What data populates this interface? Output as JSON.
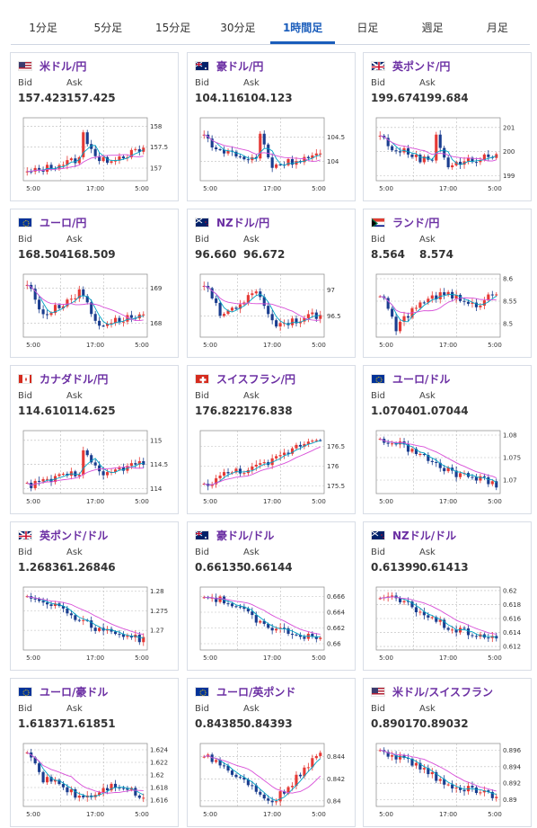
{
  "tabs": [
    {
      "label": "1分足",
      "active": false
    },
    {
      "label": "5分足",
      "active": false
    },
    {
      "label": "15分足",
      "active": false
    },
    {
      "label": "30分足",
      "active": false
    },
    {
      "label": "1時間足",
      "active": true
    },
    {
      "label": "日足",
      "active": false
    },
    {
      "label": "週足",
      "active": false
    },
    {
      "label": "月足",
      "active": false
    }
  ],
  "labels": {
    "bid": "Bid",
    "ask": "Ask"
  },
  "colors": {
    "up": "#e53935",
    "down": "#1a3d8f",
    "ma_fast": "#00a3c4",
    "ma_slow": "#d84fd8",
    "pair_text": "#6b2fa3",
    "active_tab": "#1a5dbb"
  },
  "cards": [
    {
      "pair": "米ドル/円",
      "flag": "us-jp",
      "bid": "157.423",
      "ask": "157.425",
      "x_labels": [
        "5:00",
        "17:00",
        "5:00"
      ],
      "y_labels": [
        "158",
        "157.5",
        "157"
      ],
      "ymin": 156.7,
      "ymax": 158.2,
      "start": 156.9,
      "shape": "jp"
    },
    {
      "pair": "豪ドル/円",
      "flag": "au-jp",
      "bid": "104.116",
      "ask": "104.123",
      "x_labels": [
        "5:00",
        "17:00",
        "5:00"
      ],
      "y_labels": [
        "104.5",
        "104"
      ],
      "ymin": 103.6,
      "ymax": 104.9,
      "start": 104.4,
      "shape": "jp2"
    },
    {
      "pair": "英ポンド/円",
      "flag": "gb-jp",
      "bid": "199.674",
      "ask": "199.684",
      "x_labels": [
        "5:00",
        "17:00",
        "5:00"
      ],
      "y_labels": [
        "201",
        "200",
        "199"
      ],
      "ymin": 198.8,
      "ymax": 201.4,
      "start": 200.4,
      "shape": "jp2"
    },
    {
      "pair": "ユーロ/円",
      "flag": "eu-jp",
      "bid": "168.504",
      "ask": "168.509",
      "x_labels": [
        "5:00",
        "17:00",
        "5:00"
      ],
      "y_labels": [
        "169",
        "168"
      ],
      "ymin": 167.6,
      "ymax": 169.4,
      "start": 169.2,
      "shape": "jp3"
    },
    {
      "pair": "NZドル/円",
      "flag": "nz-jp",
      "bid": "96.660",
      "ask": "96.672",
      "x_labels": [
        "5:00",
        "17:00",
        "5:00"
      ],
      "y_labels": [
        "97",
        "96.5"
      ],
      "ymin": 96.1,
      "ymax": 97.3,
      "start": 97.0,
      "shape": "jp3"
    },
    {
      "pair": "ランド/円",
      "flag": "za-jp",
      "bid": "8.564",
      "ask": "8.574",
      "x_labels": [
        "5:00",
        "17:00",
        "5:00"
      ],
      "y_labels": [
        "8.6",
        "8.55",
        "8.5"
      ],
      "ymin": 8.47,
      "ymax": 8.61,
      "start": 8.57,
      "shape": "zar"
    },
    {
      "pair": "カナダドル/円",
      "flag": "ca-jp",
      "bid": "114.610",
      "ask": "114.625",
      "x_labels": [
        "5:00",
        "17:00",
        "5:00"
      ],
      "y_labels": [
        "115",
        "114.5",
        "114"
      ],
      "ymin": 113.9,
      "ymax": 115.2,
      "start": 114.2,
      "shape": "jp"
    },
    {
      "pair": "スイスフラン/円",
      "flag": "ch-jp",
      "bid": "176.822",
      "ask": "176.838",
      "x_labels": [
        "5:00",
        "17:00",
        "5:00"
      ],
      "y_labels": [
        "176.5",
        "176",
        "175.5"
      ],
      "ymin": 175.3,
      "ymax": 176.9,
      "start": 175.5,
      "shape": "up"
    },
    {
      "pair": "ユーロ/ドル",
      "flag": "eu-us",
      "bid": "1.07040",
      "ask": "1.07044",
      "x_labels": [
        "5:00",
        "17:00",
        "5:00"
      ],
      "y_labels": [
        "1.08",
        "1.075",
        "1.07"
      ],
      "ymin": 1.067,
      "ymax": 1.081,
      "start": 1.079,
      "shape": "down"
    },
    {
      "pair": "英ポンド/ドル",
      "flag": "gb-us",
      "bid": "1.26836",
      "ask": "1.26846",
      "x_labels": [
        "5:00",
        "17:00",
        "5:00"
      ],
      "y_labels": [
        "1.28",
        "1.275",
        "1.27"
      ],
      "ymin": 1.265,
      "ymax": 1.281,
      "start": 1.279,
      "shape": "down"
    },
    {
      "pair": "豪ドル/ドル",
      "flag": "au-us",
      "bid": "0.66135",
      "ask": "0.66144",
      "x_labels": [
        "5:00",
        "17:00",
        "5:00"
      ],
      "y_labels": [
        "0.666",
        "0.664",
        "0.662",
        "0.66"
      ],
      "ymin": 0.6592,
      "ymax": 0.6672,
      "start": 0.6655,
      "shape": "down"
    },
    {
      "pair": "NZドル/ドル",
      "flag": "nz-us",
      "bid": "0.61399",
      "ask": "0.61413",
      "x_labels": [
        "5:00",
        "17:00",
        "5:00"
      ],
      "y_labels": [
        "0.62",
        "0.618",
        "0.616",
        "0.614",
        "0.612"
      ],
      "ymin": 0.6115,
      "ymax": 0.6205,
      "start": 0.6183,
      "shape": "down"
    },
    {
      "pair": "ユーロ/豪ドル",
      "flag": "eu-au",
      "bid": "1.61837",
      "ask": "1.61851",
      "x_labels": [
        "5:00",
        "17:00",
        "5:00"
      ],
      "y_labels": [
        "1.624",
        "1.622",
        "1.62",
        "1.618",
        "1.616"
      ],
      "ymin": 1.615,
      "ymax": 1.625,
      "start": 1.622,
      "shape": "down2"
    },
    {
      "pair": "ユーロ/英ポンド",
      "flag": "eu-gb",
      "bid": "0.84385",
      "ask": "0.84393",
      "x_labels": [
        "5:00",
        "17:00",
        "5:00"
      ],
      "y_labels": [
        "0.844",
        "0.842",
        "0.84"
      ],
      "ymin": 0.8395,
      "ymax": 0.8452,
      "start": 0.8445,
      "shape": "vee"
    },
    {
      "pair": "米ドル/スイスフラン",
      "flag": "us-ch",
      "bid": "0.89017",
      "ask": "0.89032",
      "x_labels": [
        "5:00",
        "17:00",
        "5:00"
      ],
      "y_labels": [
        "0.896",
        "0.894",
        "0.892",
        "0.89"
      ],
      "ymin": 0.8892,
      "ymax": 0.8968,
      "start": 0.8945,
      "shape": "down"
    }
  ]
}
